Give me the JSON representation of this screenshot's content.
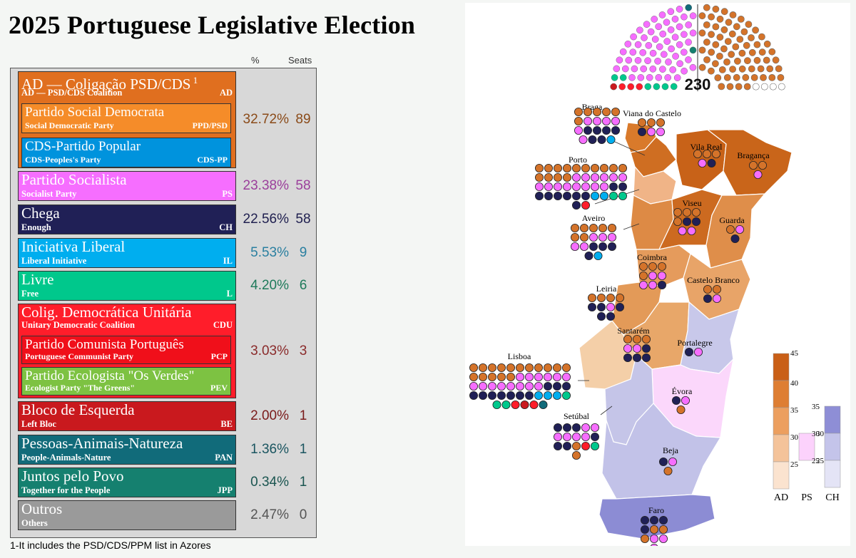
{
  "title": "2025 Portuguese Legislative Election",
  "columns": {
    "pct": "%",
    "seats": "Seats"
  },
  "parties": [
    {
      "id": "ad",
      "name": "AD — Coligação PSD/CDS",
      "sup": "1",
      "english": "AD — PSD/CDS Coalition",
      "abbr": "AD",
      "pct": "32.72%",
      "seats": "89",
      "color": "#e06f1f",
      "textcolor": "#8a4a18",
      "subs": [
        {
          "name": "Partido Social Democrata",
          "english": "Social Democratic Party",
          "abbr": "PPD/PSD",
          "color": "#f58c29"
        },
        {
          "name": "CDS-Partido Popular",
          "english": "CDS-Peoples's Party",
          "abbr": "CDS-PP",
          "color": "#0093dd"
        }
      ]
    },
    {
      "id": "ps",
      "name": "Partido Socialista",
      "english": "Socialist Party",
      "abbr": "PS",
      "pct": "23.38%",
      "seats": "58",
      "color": "#f66eff",
      "textcolor": "#9b3f9b"
    },
    {
      "id": "ch",
      "name": "Chega",
      "english": "Enough",
      "abbr": "CH",
      "pct": "22.56%",
      "seats": "58",
      "color": "#202056",
      "textcolor": "#202050"
    },
    {
      "id": "il",
      "name": "Iniciativa Liberal",
      "english": "Liberal Initiative",
      "abbr": "IL",
      "pct": "5.53%",
      "seats": "9",
      "color": "#00aeef",
      "textcolor": "#2a7fa0"
    },
    {
      "id": "l",
      "name": "Livre",
      "english": "Free",
      "abbr": "L",
      "pct": "4.20%",
      "seats": "6",
      "color": "#00c88c",
      "textcolor": "#1e7a5a"
    },
    {
      "id": "cdu",
      "name": "Colig. Democrática Unitária",
      "english": "Unitary Democratic Coalition",
      "abbr": "CDU",
      "pct": "3.03%",
      "seats": "3",
      "color": "#ff1d2a",
      "textcolor": "#8a2a2a",
      "subs": [
        {
          "name": "Partido Comunista Português",
          "english": "Portuguese Communist Party",
          "abbr": "PCP",
          "color": "#f00f1a"
        },
        {
          "name": "Partido Ecologista \"Os Verdes\"",
          "english": "Ecologist Party \"The Greens\"",
          "abbr": "PEV",
          "color": "#7dc242"
        }
      ]
    },
    {
      "id": "be",
      "name": "Bloco de Esquerda",
      "english": "Left Bloc",
      "abbr": "BE",
      "pct": "2.00%",
      "seats": "1",
      "color": "#c9191e",
      "textcolor": "#7a1a1a"
    },
    {
      "id": "pan",
      "name": "Pessoas-Animais-Natureza",
      "english": "People-Animals-Nature",
      "abbr": "PAN",
      "pct": "1.36%",
      "seats": "1",
      "color": "#116b7a",
      "textcolor": "#1a5560"
    },
    {
      "id": "jpp",
      "name": "Juntos pelo Povo",
      "english": "Together for the People",
      "abbr": "JPP",
      "pct": "0.34%",
      "seats": "1",
      "color": "#15806f",
      "textcolor": "#1a5550"
    },
    {
      "id": "out",
      "name": "Outros",
      "english": "Others",
      "abbr": "",
      "pct": "2.47%",
      "seats": "0",
      "color": "#9a9a9a",
      "textcolor": "#555"
    }
  ],
  "footnote": "1-It includes the PSD/CDS/PPM list in Azores",
  "parliament": {
    "total": "230",
    "left_seat_counts": {
      "be": 1,
      "cdu": 3,
      "l": 6,
      "ps": 58,
      "jpp": 1,
      "pan": 1
    },
    "right_seat_counts": {
      "ad": 89,
      "il": 9,
      "ch": 58,
      "vacant": 4
    }
  },
  "districts": [
    {
      "name": "Braga",
      "seats": [
        "ad",
        "ad",
        "ad",
        "ad",
        "ad",
        "ad",
        "ps",
        "ps",
        "ps",
        "ps",
        "ps",
        "ch",
        "ch",
        "ch",
        "ch",
        "ps",
        "ch",
        "ch",
        "il"
      ]
    },
    {
      "name": "Viana do Castelo",
      "seats": [
        "ad",
        "ad",
        "ad",
        "ch",
        "ps",
        "ps"
      ]
    },
    {
      "name": "Vila Real",
      "seats": [
        "ad",
        "ad",
        "ad",
        "ps",
        "ch"
      ]
    },
    {
      "name": "Bragança",
      "seats": [
        "ad",
        "ad",
        "ps"
      ]
    },
    {
      "name": "Porto",
      "seats": [
        "ad",
        "ad",
        "ad",
        "ad",
        "ad",
        "ad",
        "ad",
        "ad",
        "ad",
        "ad",
        "ad",
        "ad",
        "ad",
        "ad",
        "ps",
        "ps",
        "ps",
        "ps",
        "ps",
        "ps",
        "ps",
        "ps",
        "ps",
        "ps",
        "ps",
        "ps",
        "ps",
        "ps",
        "ch",
        "ch",
        "ch",
        "ch",
        "ch",
        "ch",
        "ch",
        "ch",
        "il",
        "il",
        "l",
        "l",
        "ch",
        "cdu"
      ]
    },
    {
      "name": "Aveiro",
      "seats": [
        "ad",
        "ad",
        "ad",
        "ad",
        "ad",
        "ad",
        "ad",
        "ps",
        "ps",
        "ps",
        "ps",
        "ps",
        "ch",
        "ch",
        "ch",
        "ch",
        "il"
      ]
    },
    {
      "name": "Viseu",
      "seats": [
        "ad",
        "ad",
        "ad",
        "ad",
        "ch",
        "ch",
        "ps",
        "ps"
      ]
    },
    {
      "name": "Guarda",
      "seats": [
        "ad",
        "ps",
        "ch"
      ]
    },
    {
      "name": "Coimbra",
      "seats": [
        "ad",
        "ad",
        "ad",
        "ad",
        "ps",
        "ps",
        "ps",
        "ps",
        "ch"
      ]
    },
    {
      "name": "Castelo Branco",
      "seats": [
        "ad",
        "ad",
        "ch",
        "ps"
      ]
    },
    {
      "name": "Leiria",
      "seats": [
        "ad",
        "ad",
        "ad",
        "ad",
        "ch",
        "ch",
        "ps",
        "ch",
        "ch",
        "ch"
      ]
    },
    {
      "name": "Santarém",
      "seats": [
        "ad",
        "ad",
        "ad",
        "ps",
        "ps",
        "ch",
        "ch",
        "ch",
        "ch"
      ]
    },
    {
      "name": "Portalegre",
      "seats": [
        "ch",
        "ps"
      ]
    },
    {
      "name": "Lisboa",
      "seats": [
        "ad",
        "ad",
        "ad",
        "ad",
        "ad",
        "ad",
        "ad",
        "ad",
        "ad",
        "ad",
        "ad",
        "ad",
        "ad",
        "ad",
        "ad",
        "ad",
        "ps",
        "ps",
        "ps",
        "ps",
        "ps",
        "ps",
        "ps",
        "ps",
        "ps",
        "ps",
        "ps",
        "ps",
        "ps",
        "ps",
        "ch",
        "ch",
        "ch",
        "ch",
        "ch",
        "ch",
        "ch",
        "ch",
        "ch",
        "ch",
        "il",
        "il",
        "il",
        "l",
        "l",
        "l",
        "cdu",
        "be",
        "cdu",
        "pan"
      ]
    },
    {
      "name": "Évora",
      "seats": [
        "ch",
        "ps",
        "ad"
      ]
    },
    {
      "name": "Setúbal",
      "seats": [
        "ch",
        "ch",
        "ch",
        "ps",
        "ps",
        "ps",
        "ps",
        "ps",
        "ps",
        "ch",
        "ch",
        "ch",
        "ad",
        "cdu",
        "l",
        "ad"
      ]
    },
    {
      "name": "Beja",
      "seats": [
        "ch",
        "ps",
        "ad"
      ]
    },
    {
      "name": "Faro",
      "seats": [
        "ch",
        "ch",
        "ch",
        "ch",
        "ad",
        "ad",
        "ad",
        "ps",
        "ps",
        "ps"
      ]
    }
  ],
  "legend": {
    "ad": {
      "label": "AD",
      "ticks": [
        "45",
        "40",
        "35",
        "30",
        "25"
      ]
    },
    "ps": {
      "label": "PS",
      "ticks": [
        "30",
        "25"
      ]
    },
    "ch": {
      "label": "CH",
      "ticks": [
        "35",
        "30",
        "25"
      ]
    }
  }
}
